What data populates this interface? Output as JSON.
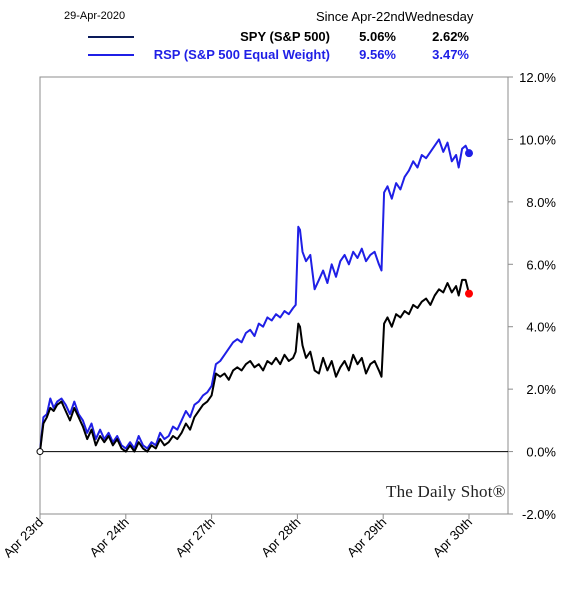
{
  "legend": {
    "date": "29-Apr-2020",
    "col_since": "Since Apr-22nd",
    "col_wed": "Wednesday",
    "rows": [
      {
        "name": "SPY (S&P 500)",
        "since": "5.06%",
        "wed": "2.62%",
        "color": "#0a1a5a"
      },
      {
        "name": "RSP (S&P 500 Equal Weight)",
        "since": "9.56%",
        "wed": "3.47%",
        "color": "#1f1fe6"
      }
    ]
  },
  "watermark": "The Daily Shot®",
  "chart_data": {
    "type": "line",
    "x_categories": [
      "Apr 23rd",
      "Apr 24th",
      "Apr 27th",
      "Apr 28th",
      "Apr 29th",
      "Apr 30th"
    ],
    "yticks": [
      "12.0%",
      "10.0%",
      "8.0%",
      "6.0%",
      "4.0%",
      "2.0%",
      "0.0%",
      "-2.0%"
    ],
    "ylim": [
      -2,
      12
    ],
    "legend_position": "top",
    "grid": false,
    "series": [
      {
        "name": "SPY (S&P 500)",
        "color": "#000000",
        "end_marker_color": "#ff0000",
        "points": [
          [
            0.0,
            0.0
          ],
          [
            0.04,
            0.9
          ],
          [
            0.08,
            1.1
          ],
          [
            0.12,
            1.4
          ],
          [
            0.16,
            1.3
          ],
          [
            0.2,
            1.5
          ],
          [
            0.25,
            1.6
          ],
          [
            0.3,
            1.3
          ],
          [
            0.35,
            1.0
          ],
          [
            0.4,
            1.4
          ],
          [
            0.45,
            1.1
          ],
          [
            0.5,
            0.8
          ],
          [
            0.55,
            0.4
          ],
          [
            0.6,
            0.7
          ],
          [
            0.65,
            0.2
          ],
          [
            0.7,
            0.5
          ],
          [
            0.75,
            0.3
          ],
          [
            0.8,
            0.5
          ],
          [
            0.85,
            0.2
          ],
          [
            0.9,
            0.4
          ],
          [
            0.95,
            0.1
          ],
          [
            1.0,
            0.0
          ],
          [
            1.05,
            0.2
          ],
          [
            1.1,
            0.0
          ],
          [
            1.15,
            0.3
          ],
          [
            1.2,
            0.1
          ],
          [
            1.25,
            0.0
          ],
          [
            1.3,
            0.2
          ],
          [
            1.35,
            0.1
          ],
          [
            1.4,
            0.4
          ],
          [
            1.45,
            0.2
          ],
          [
            1.5,
            0.3
          ],
          [
            1.55,
            0.5
          ],
          [
            1.6,
            0.4
          ],
          [
            1.65,
            0.6
          ],
          [
            1.7,
            0.9
          ],
          [
            1.75,
            0.7
          ],
          [
            1.8,
            1.1
          ],
          [
            1.85,
            1.3
          ],
          [
            1.9,
            1.5
          ],
          [
            1.95,
            1.6
          ],
          [
            2.0,
            1.8
          ],
          [
            2.05,
            2.5
          ],
          [
            2.1,
            2.4
          ],
          [
            2.15,
            2.5
          ],
          [
            2.2,
            2.3
          ],
          [
            2.25,
            2.6
          ],
          [
            2.3,
            2.7
          ],
          [
            2.35,
            2.6
          ],
          [
            2.4,
            2.8
          ],
          [
            2.45,
            2.9
          ],
          [
            2.5,
            2.7
          ],
          [
            2.55,
            2.8
          ],
          [
            2.6,
            2.6
          ],
          [
            2.65,
            2.9
          ],
          [
            2.7,
            2.8
          ],
          [
            2.75,
            3.0
          ],
          [
            2.8,
            2.8
          ],
          [
            2.85,
            3.1
          ],
          [
            2.9,
            2.9
          ],
          [
            2.95,
            3.0
          ],
          [
            2.98,
            3.2
          ],
          [
            3.01,
            4.1
          ],
          [
            3.03,
            4.0
          ],
          [
            3.06,
            3.4
          ],
          [
            3.1,
            3.0
          ],
          [
            3.15,
            3.2
          ],
          [
            3.2,
            2.6
          ],
          [
            3.25,
            2.5
          ],
          [
            3.3,
            3.0
          ],
          [
            3.35,
            2.6
          ],
          [
            3.4,
            2.9
          ],
          [
            3.45,
            2.4
          ],
          [
            3.5,
            2.7
          ],
          [
            3.55,
            2.9
          ],
          [
            3.6,
            2.6
          ],
          [
            3.65,
            3.1
          ],
          [
            3.7,
            2.8
          ],
          [
            3.75,
            3.0
          ],
          [
            3.8,
            2.5
          ],
          [
            3.85,
            2.8
          ],
          [
            3.9,
            2.9
          ],
          [
            3.95,
            2.6
          ],
          [
            3.98,
            2.4
          ],
          [
            4.01,
            4.1
          ],
          [
            4.05,
            4.3
          ],
          [
            4.1,
            4.0
          ],
          [
            4.15,
            4.4
          ],
          [
            4.2,
            4.3
          ],
          [
            4.25,
            4.5
          ],
          [
            4.3,
            4.4
          ],
          [
            4.35,
            4.7
          ],
          [
            4.4,
            4.6
          ],
          [
            4.45,
            4.8
          ],
          [
            4.5,
            4.9
          ],
          [
            4.55,
            4.7
          ],
          [
            4.6,
            5.0
          ],
          [
            4.65,
            5.2
          ],
          [
            4.7,
            5.1
          ],
          [
            4.75,
            5.4
          ],
          [
            4.8,
            5.1
          ],
          [
            4.85,
            5.3
          ],
          [
            4.88,
            5.0
          ],
          [
            4.92,
            5.5
          ],
          [
            4.96,
            5.5
          ],
          [
            5.0,
            5.06
          ]
        ]
      },
      {
        "name": "RSP (S&P 500 Equal Weight)",
        "color": "#1f1fe6",
        "end_marker_color": "#1f1fe6",
        "points": [
          [
            0.0,
            0.0
          ],
          [
            0.04,
            1.1
          ],
          [
            0.08,
            1.2
          ],
          [
            0.12,
            1.7
          ],
          [
            0.16,
            1.4
          ],
          [
            0.2,
            1.6
          ],
          [
            0.25,
            1.7
          ],
          [
            0.3,
            1.5
          ],
          [
            0.35,
            1.2
          ],
          [
            0.4,
            1.6
          ],
          [
            0.45,
            1.2
          ],
          [
            0.5,
            1.0
          ],
          [
            0.55,
            0.6
          ],
          [
            0.6,
            0.9
          ],
          [
            0.65,
            0.4
          ],
          [
            0.7,
            0.7
          ],
          [
            0.75,
            0.4
          ],
          [
            0.8,
            0.6
          ],
          [
            0.85,
            0.3
          ],
          [
            0.9,
            0.5
          ],
          [
            0.95,
            0.2
          ],
          [
            1.0,
            0.1
          ],
          [
            1.05,
            0.3
          ],
          [
            1.1,
            0.1
          ],
          [
            1.15,
            0.5
          ],
          [
            1.2,
            0.2
          ],
          [
            1.25,
            0.1
          ],
          [
            1.3,
            0.3
          ],
          [
            1.35,
            0.2
          ],
          [
            1.4,
            0.6
          ],
          [
            1.45,
            0.4
          ],
          [
            1.5,
            0.5
          ],
          [
            1.55,
            0.8
          ],
          [
            1.6,
            0.7
          ],
          [
            1.65,
            1.0
          ],
          [
            1.7,
            1.3
          ],
          [
            1.75,
            1.1
          ],
          [
            1.8,
            1.5
          ],
          [
            1.85,
            1.6
          ],
          [
            1.9,
            1.8
          ],
          [
            1.95,
            1.9
          ],
          [
            2.0,
            2.1
          ],
          [
            2.05,
            2.8
          ],
          [
            2.1,
            2.9
          ],
          [
            2.15,
            3.1
          ],
          [
            2.2,
            3.3
          ],
          [
            2.25,
            3.5
          ],
          [
            2.3,
            3.6
          ],
          [
            2.35,
            3.5
          ],
          [
            2.4,
            3.8
          ],
          [
            2.45,
            3.9
          ],
          [
            2.5,
            3.7
          ],
          [
            2.55,
            4.1
          ],
          [
            2.6,
            4.0
          ],
          [
            2.65,
            4.3
          ],
          [
            2.7,
            4.2
          ],
          [
            2.75,
            4.4
          ],
          [
            2.8,
            4.3
          ],
          [
            2.85,
            4.5
          ],
          [
            2.9,
            4.4
          ],
          [
            2.95,
            4.6
          ],
          [
            2.98,
            4.7
          ],
          [
            3.01,
            7.2
          ],
          [
            3.03,
            7.1
          ],
          [
            3.06,
            6.4
          ],
          [
            3.1,
            6.1
          ],
          [
            3.15,
            6.3
          ],
          [
            3.2,
            5.2
          ],
          [
            3.25,
            5.5
          ],
          [
            3.3,
            5.8
          ],
          [
            3.35,
            5.4
          ],
          [
            3.4,
            6.0
          ],
          [
            3.45,
            5.6
          ],
          [
            3.5,
            6.1
          ],
          [
            3.55,
            6.3
          ],
          [
            3.6,
            6.0
          ],
          [
            3.65,
            6.4
          ],
          [
            3.7,
            6.2
          ],
          [
            3.75,
            6.5
          ],
          [
            3.8,
            6.1
          ],
          [
            3.85,
            6.3
          ],
          [
            3.9,
            6.4
          ],
          [
            3.95,
            6.0
          ],
          [
            3.98,
            5.8
          ],
          [
            4.01,
            8.3
          ],
          [
            4.05,
            8.5
          ],
          [
            4.1,
            8.1
          ],
          [
            4.15,
            8.6
          ],
          [
            4.2,
            8.4
          ],
          [
            4.25,
            8.8
          ],
          [
            4.3,
            9.0
          ],
          [
            4.35,
            9.3
          ],
          [
            4.4,
            9.1
          ],
          [
            4.45,
            9.5
          ],
          [
            4.5,
            9.4
          ],
          [
            4.55,
            9.6
          ],
          [
            4.6,
            9.8
          ],
          [
            4.65,
            10.0
          ],
          [
            4.7,
            9.6
          ],
          [
            4.75,
            9.9
          ],
          [
            4.8,
            9.3
          ],
          [
            4.85,
            9.5
          ],
          [
            4.88,
            9.1
          ],
          [
            4.92,
            9.7
          ],
          [
            4.96,
            9.8
          ],
          [
            5.0,
            9.56
          ]
        ]
      }
    ]
  }
}
